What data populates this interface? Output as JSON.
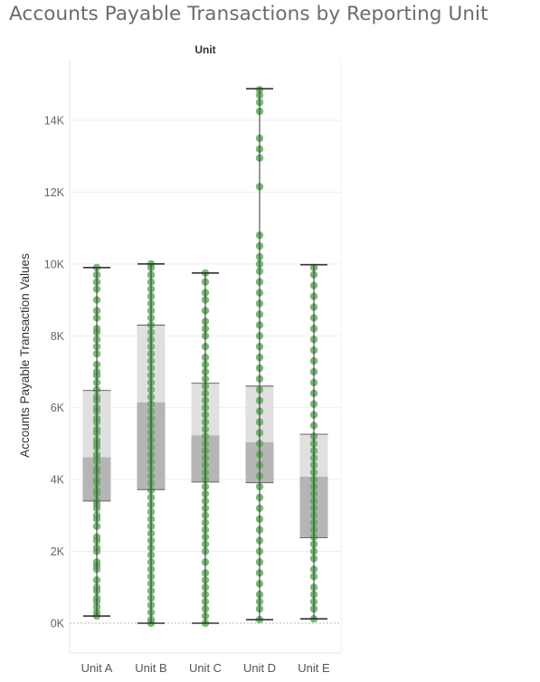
{
  "chart_data": {
    "type": "box",
    "title": "Accounts Payable Transactions by Reporting Unit",
    "column_header": "Unit",
    "xlabel": "",
    "ylabel": "Accounts Payable Transaction Values",
    "categories": [
      "Unit A",
      "Unit B",
      "Unit C",
      "Unit D",
      "Unit E"
    ],
    "yticks": [
      0,
      2000,
      4000,
      6000,
      8000,
      10000,
      12000,
      14000
    ],
    "ytick_labels": [
      "0K",
      "2K",
      "4K",
      "6K",
      "8K",
      "10K",
      "12K",
      "14K"
    ],
    "ylim": [
      -800,
      16200
    ],
    "grid": true,
    "colors": {
      "points": "#5ea85a",
      "box_lower": "#b5b5b5",
      "box_upper": "#e0e0e0",
      "whisker": "#333333",
      "gridline": "#eeeeee",
      "zero_line": "#bbbbbb"
    },
    "boxes": [
      {
        "name": "Unit A",
        "min": 200,
        "q1": 3400,
        "median": 4620,
        "q3": 6480,
        "max": 9900
      },
      {
        "name": "Unit B",
        "min": 0,
        "q1": 3720,
        "median": 6150,
        "q3": 8300,
        "max": 10000
      },
      {
        "name": "Unit C",
        "min": 0,
        "q1": 3930,
        "median": 5230,
        "q3": 6680,
        "max": 9750
      },
      {
        "name": "Unit D",
        "min": 100,
        "q1": 3910,
        "median": 5040,
        "q3": 6600,
        "max": 14880
      },
      {
        "name": "Unit E",
        "min": 120,
        "q1": 2380,
        "median": 4080,
        "q3": 5260,
        "max": 9980
      }
    ],
    "points": [
      [
        200,
        300,
        450,
        600,
        700,
        900,
        1000,
        1200,
        1500,
        1600,
        1700,
        2000,
        2100,
        2300,
        2400,
        2700,
        2900,
        3000,
        3200,
        3300,
        3400,
        3600,
        3700,
        3900,
        4000,
        4200,
        4300,
        4500,
        4600,
        4700,
        4900,
        5000,
        5100,
        5300,
        5400,
        5600,
        5700,
        5900,
        6000,
        6200,
        6300,
        6500,
        6700,
        6900,
        7000,
        7200,
        7500,
        7700,
        7900,
        8100,
        8200,
        8500,
        8700,
        9000,
        9300,
        9500,
        9700,
        9900
      ],
      [
        0,
        100,
        300,
        500,
        700,
        900,
        1100,
        1300,
        1500,
        1700,
        1900,
        2100,
        2300,
        2500,
        2700,
        2900,
        3100,
        3300,
        3500,
        3700,
        3900,
        4100,
        4300,
        4500,
        4700,
        4900,
        5100,
        5300,
        5500,
        5700,
        5900,
        6100,
        6300,
        6500,
        6700,
        6900,
        7100,
        7300,
        7500,
        7700,
        7900,
        8100,
        8300,
        8500,
        8700,
        8900,
        9100,
        9300,
        9500,
        9700,
        9900,
        10000
      ],
      [
        0,
        200,
        400,
        600,
        800,
        1000,
        1200,
        1400,
        1700,
        2000,
        2200,
        2400,
        2600,
        2800,
        3000,
        3200,
        3400,
        3600,
        3800,
        4000,
        4200,
        4400,
        4600,
        4800,
        5000,
        5200,
        5400,
        5600,
        5800,
        6000,
        6200,
        6400,
        6600,
        6800,
        7000,
        7200,
        7400,
        7700,
        8000,
        8200,
        8400,
        8700,
        9000,
        9200,
        9500,
        9750
      ],
      [
        100,
        400,
        600,
        800,
        1100,
        1400,
        1700,
        2000,
        2300,
        2600,
        2900,
        3200,
        3500,
        3800,
        4100,
        4400,
        4700,
        5000,
        5300,
        5600,
        5900,
        6200,
        6500,
        6800,
        7100,
        7400,
        7700,
        8000,
        8300,
        8600,
        8900,
        9200,
        9500,
        9800,
        10000,
        10200,
        10500,
        10800,
        12150,
        12950,
        13200,
        13500,
        14250,
        14500,
        14700,
        14850
      ],
      [
        120,
        400,
        600,
        800,
        1000,
        1300,
        1500,
        1800,
        2000,
        2200,
        2400,
        2600,
        2800,
        3000,
        3200,
        3400,
        3600,
        3800,
        4000,
        4200,
        4400,
        4600,
        4800,
        5000,
        5200,
        5500,
        5800,
        6100,
        6400,
        6700,
        7000,
        7300,
        7600,
        7900,
        8200,
        8500,
        8800,
        9100,
        9400,
        9700,
        9900
      ]
    ]
  }
}
